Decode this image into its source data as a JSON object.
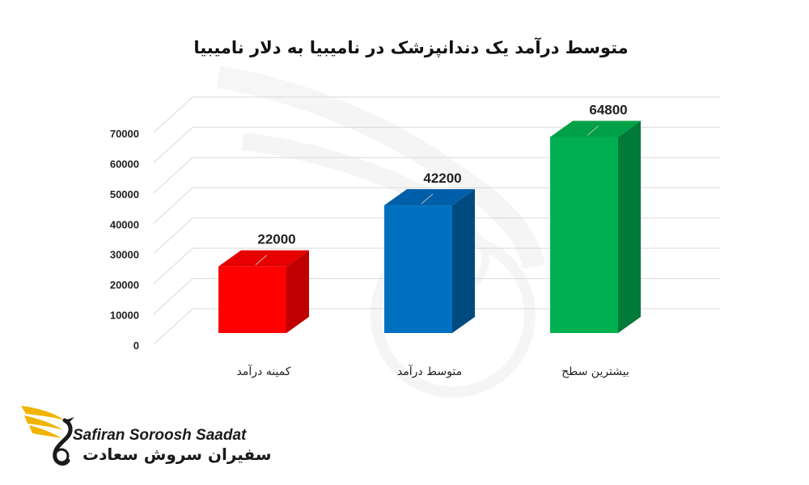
{
  "chart_data": {
    "type": "bar",
    "title": "متوسط درآمد یک دندانپزشک در نامیبیا به دلار نامیبیا",
    "categories": [
      "کمینه درآمد",
      "متوسط درآمد",
      "بیشترین سطح"
    ],
    "values": [
      22000,
      42200,
      64800
    ],
    "data_labels": [
      "22000",
      "42200",
      "64800"
    ],
    "y_ticks": [
      "0",
      "10000",
      "20000",
      "30000",
      "40000",
      "50000",
      "60000",
      "70000"
    ],
    "ylim": [
      0,
      70000
    ],
    "grid": true,
    "legend": "none",
    "colors": {
      "bar_front": [
        "#ff0000",
        "#0070c0",
        "#00b050"
      ],
      "bar_side": [
        "#c00000",
        "#004a80",
        "#007a38"
      ],
      "bar_top": [
        "#e60000",
        "#005fa8",
        "#00a046"
      ]
    }
  },
  "logo": {
    "en": "Safiran Soroosh Saadat",
    "fa": "سفیران سروش سعادت",
    "colors": {
      "wing": "#f0b400",
      "body": "#1a1a1a"
    }
  }
}
